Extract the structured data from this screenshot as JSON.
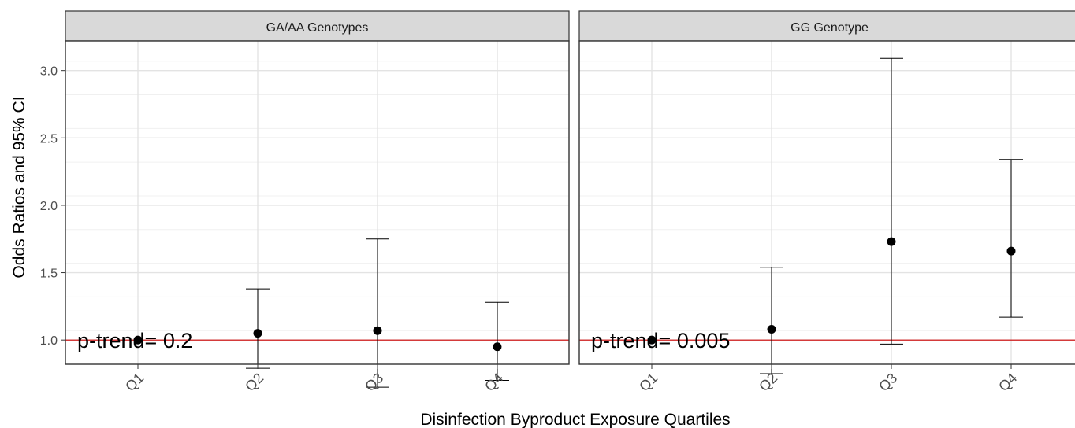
{
  "chart_data": {
    "type": "scatter",
    "subtype": "point-errorbar (odds ratio with 95% CI), faceted",
    "xlabel": "Disinfection Byproduct Exposure Quartiles",
    "ylabel": "Odds Ratios and 95% CI",
    "categories": [
      "Q1",
      "Q2",
      "Q3",
      "Q4"
    ],
    "ylim": [
      0.82,
      3.22
    ],
    "yticks": [
      1.0,
      1.5,
      2.0,
      2.5,
      3.0
    ],
    "ytick_labels": [
      "1.0",
      "1.5",
      "2.0",
      "2.5",
      "3.0"
    ],
    "grid": true,
    "reference_line": {
      "y": 1.0,
      "color": "#cc0000"
    },
    "panels": [
      {
        "strip_label": "GA/AA Genotypes",
        "annotation": "p-trend= 0.2",
        "points": [
          {
            "x": "Q1",
            "or": 1.0,
            "lower": null,
            "upper": null
          },
          {
            "x": "Q2",
            "or": 1.05,
            "lower": 0.79,
            "upper": 1.38
          },
          {
            "x": "Q3",
            "or": 1.07,
            "lower": 0.65,
            "upper": 1.75
          },
          {
            "x": "Q4",
            "or": 0.95,
            "lower": 0.7,
            "upper": 1.28
          }
        ]
      },
      {
        "strip_label": "GG Genotype",
        "annotation": "p-trend= 0.005",
        "points": [
          {
            "x": "Q1",
            "or": 1.0,
            "lower": null,
            "upper": null
          },
          {
            "x": "Q2",
            "or": 1.08,
            "lower": 0.75,
            "upper": 1.54
          },
          {
            "x": "Q3",
            "or": 1.73,
            "lower": 0.97,
            "upper": 3.09
          },
          {
            "x": "Q4",
            "or": 1.66,
            "lower": 1.17,
            "upper": 2.34
          }
        ]
      }
    ]
  }
}
